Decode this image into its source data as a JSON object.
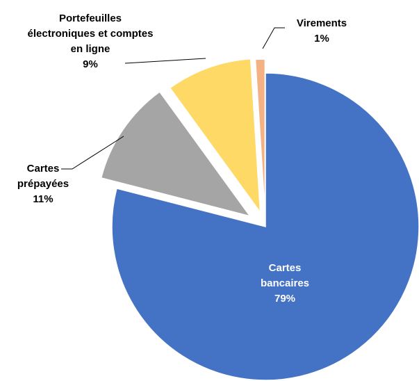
{
  "chart_data": {
    "type": "pie",
    "categories": [
      "Cartes bancaires",
      "Cartes prépayées",
      "Portefeuilles électroniques et comptes en ligne",
      "Virements"
    ],
    "values": [
      79,
      11,
      9,
      1
    ],
    "value_labels": [
      "79%",
      "11%",
      "9%",
      "1%"
    ],
    "colors": [
      "#4472c4",
      "#a5a5a5",
      "#ffd966",
      "#f4b183"
    ]
  }
}
